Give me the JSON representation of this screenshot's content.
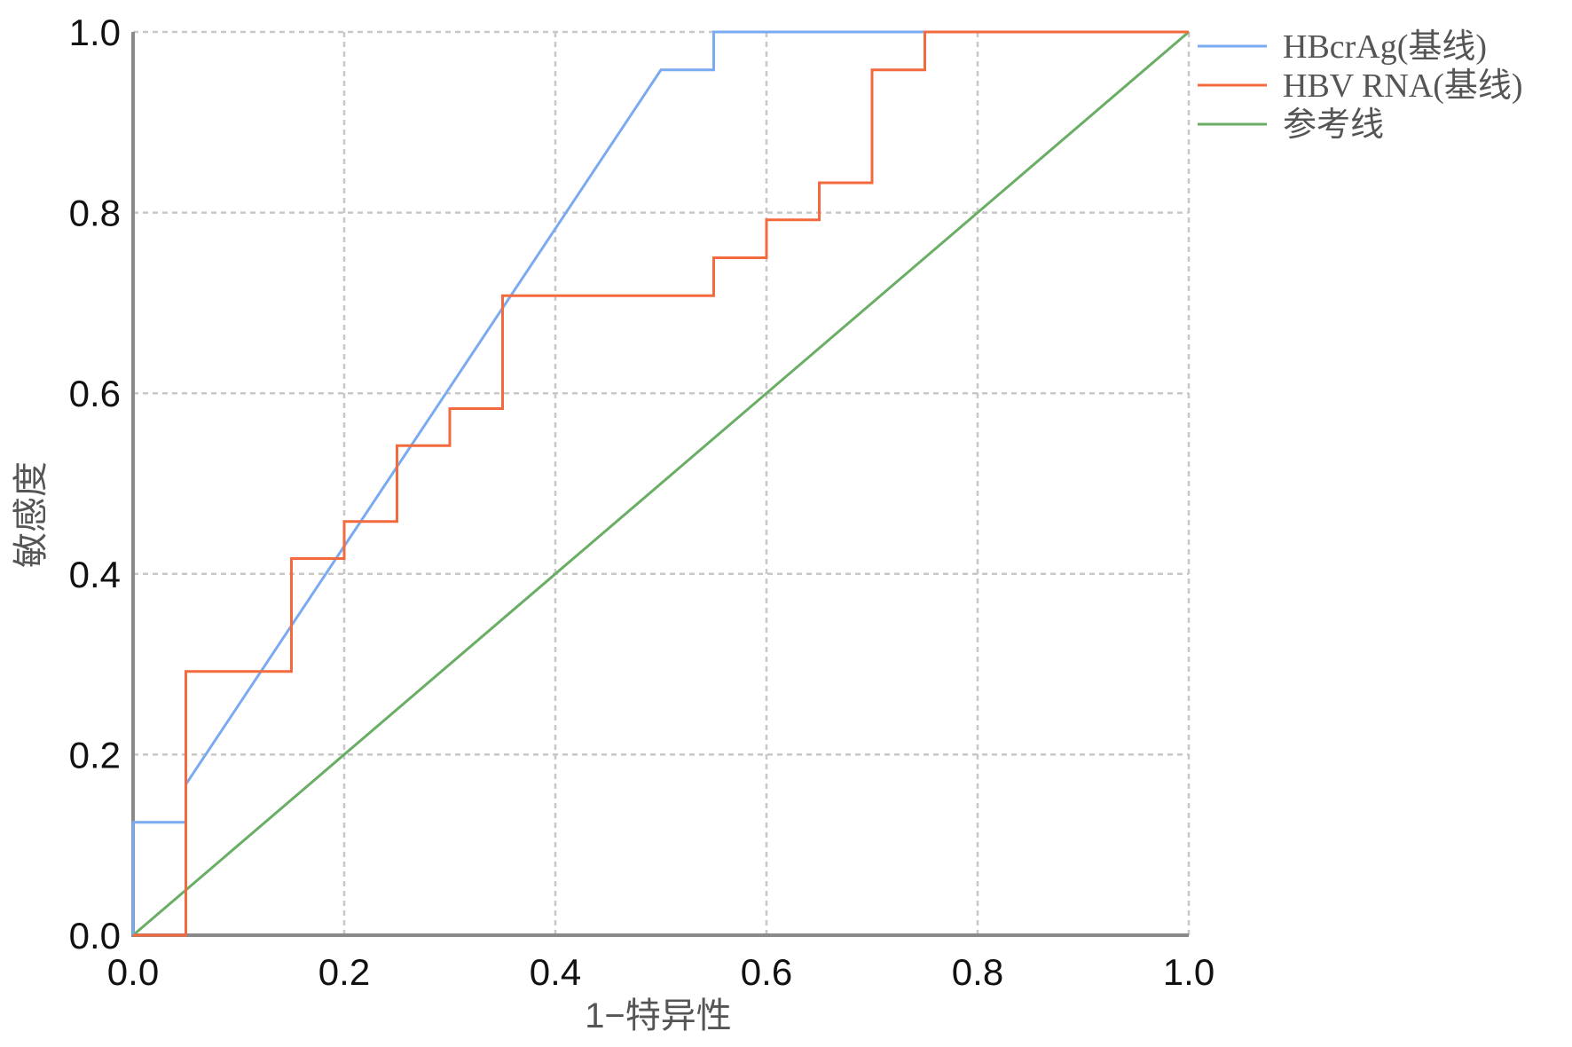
{
  "chart_data": {
    "type": "line",
    "title": "",
    "xlabel": "1−特异性",
    "ylabel": "敏感度",
    "xlim": [
      0,
      1
    ],
    "ylim": [
      0,
      1
    ],
    "x_ticks": [
      0.0,
      0.2,
      0.4,
      0.6,
      0.8,
      1.0
    ],
    "y_ticks": [
      0.0,
      0.2,
      0.4,
      0.6,
      0.8,
      1.0
    ],
    "x_tick_labels": [
      "0.0",
      "0.2",
      "0.4",
      "0.6",
      "0.8",
      "1.0"
    ],
    "y_tick_labels": [
      "0.0",
      "0.2",
      "0.4",
      "0.6",
      "0.8",
      "1.0"
    ],
    "grid": true,
    "legend_position": "top-right outside",
    "series": [
      {
        "name": "HBcrAg(基线)",
        "color": "#7aabf0",
        "x": [
          0,
          0,
          0.05,
          0.05,
          0.5,
          0.55,
          0.55,
          1.0
        ],
        "y": [
          0,
          0.125,
          0.125,
          0.167,
          0.958,
          0.958,
          1.0,
          1.0
        ]
      },
      {
        "name": "HBV RNA(基线)",
        "color": "#f26a3d",
        "x": [
          0,
          0.05,
          0.05,
          0.15,
          0.15,
          0.2,
          0.2,
          0.25,
          0.25,
          0.3,
          0.3,
          0.35,
          0.35,
          0.55,
          0.55,
          0.6,
          0.6,
          0.65,
          0.65,
          0.7,
          0.7,
          0.75,
          0.75,
          1.0
        ],
        "y": [
          0,
          0,
          0.292,
          0.292,
          0.417,
          0.417,
          0.458,
          0.458,
          0.542,
          0.542,
          0.583,
          0.583,
          0.708,
          0.708,
          0.75,
          0.75,
          0.792,
          0.792,
          0.833,
          0.833,
          0.958,
          0.958,
          1.0,
          1.0
        ]
      },
      {
        "name": "参考线",
        "color": "#6aae66",
        "x": [
          0,
          1
        ],
        "y": [
          0,
          1
        ]
      }
    ]
  }
}
